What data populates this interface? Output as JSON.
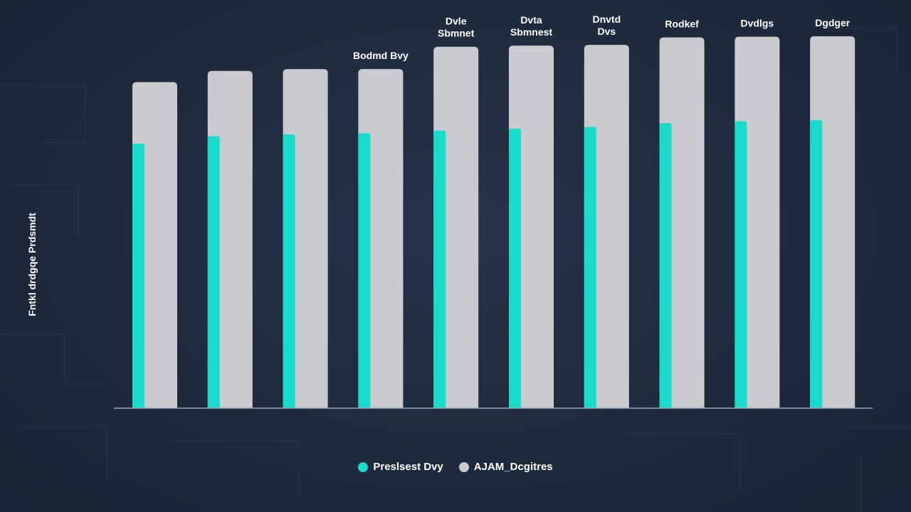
{
  "colors": {
    "background": "#1f2a3d",
    "primary": "#19dbcc",
    "secondary": "#c9cbcf",
    "axis": "#9aa6b5",
    "text": "#ffffff"
  },
  "chart_data": {
    "type": "bar",
    "ylabel": "Fntkl drdgqe Prdsmdt",
    "categories": [
      "",
      "",
      "",
      "Bodmd Bvy",
      "Dvle Sbmnet",
      "Dvta Sbmnest",
      "Dnvtd Dvs",
      "Rodkef",
      "Dvdlgs",
      "Dgdger"
    ],
    "series": [
      {
        "name": "Preslsest Dvy",
        "color": "#19dbcc",
        "values": [
          71,
          73,
          73.5,
          73.8,
          74.5,
          75,
          75.5,
          76.5,
          77,
          77.3
        ]
      },
      {
        "name": "AJAM_Dcgitres",
        "color": "#c9cbcf",
        "values": [
          87.5,
          90.5,
          91,
          91,
          97,
          97.3,
          97.5,
          99.5,
          99.7,
          99.8
        ]
      }
    ],
    "ylim": [
      0,
      100
    ],
    "grid": false,
    "legend": "bottom-center"
  }
}
